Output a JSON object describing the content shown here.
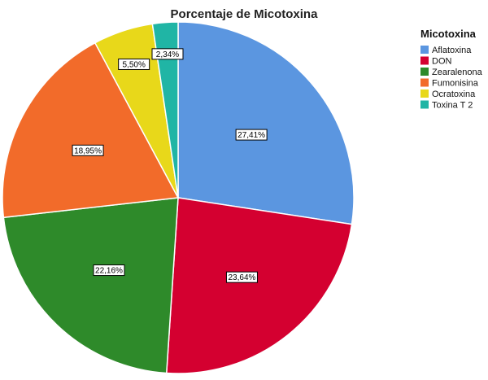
{
  "chart_data": {
    "type": "pie",
    "title": "Porcentaje de Micotoxina",
    "legend": {
      "title": "Micotoxina",
      "position": "right"
    },
    "slices": [
      {
        "label": "Aflatoxina",
        "value": 27.41,
        "display": "27,41%",
        "color": "#5B96E0"
      },
      {
        "label": "DON",
        "value": 23.64,
        "display": "23,64%",
        "color": "#D40030"
      },
      {
        "label": "Zearalenona",
        "value": 22.16,
        "display": "22,16%",
        "color": "#2E8A2A"
      },
      {
        "label": "Fumonisina",
        "value": 18.95,
        "display": "18,95%",
        "color": "#F26B2A"
      },
      {
        "label": "Ocratoxina",
        "value": 5.5,
        "display": "5,50%",
        "color": "#E8D81A"
      },
      {
        "label": "Toxina T 2",
        "value": 2.34,
        "display": "2,34%",
        "color": "#20B5A5"
      }
    ]
  }
}
